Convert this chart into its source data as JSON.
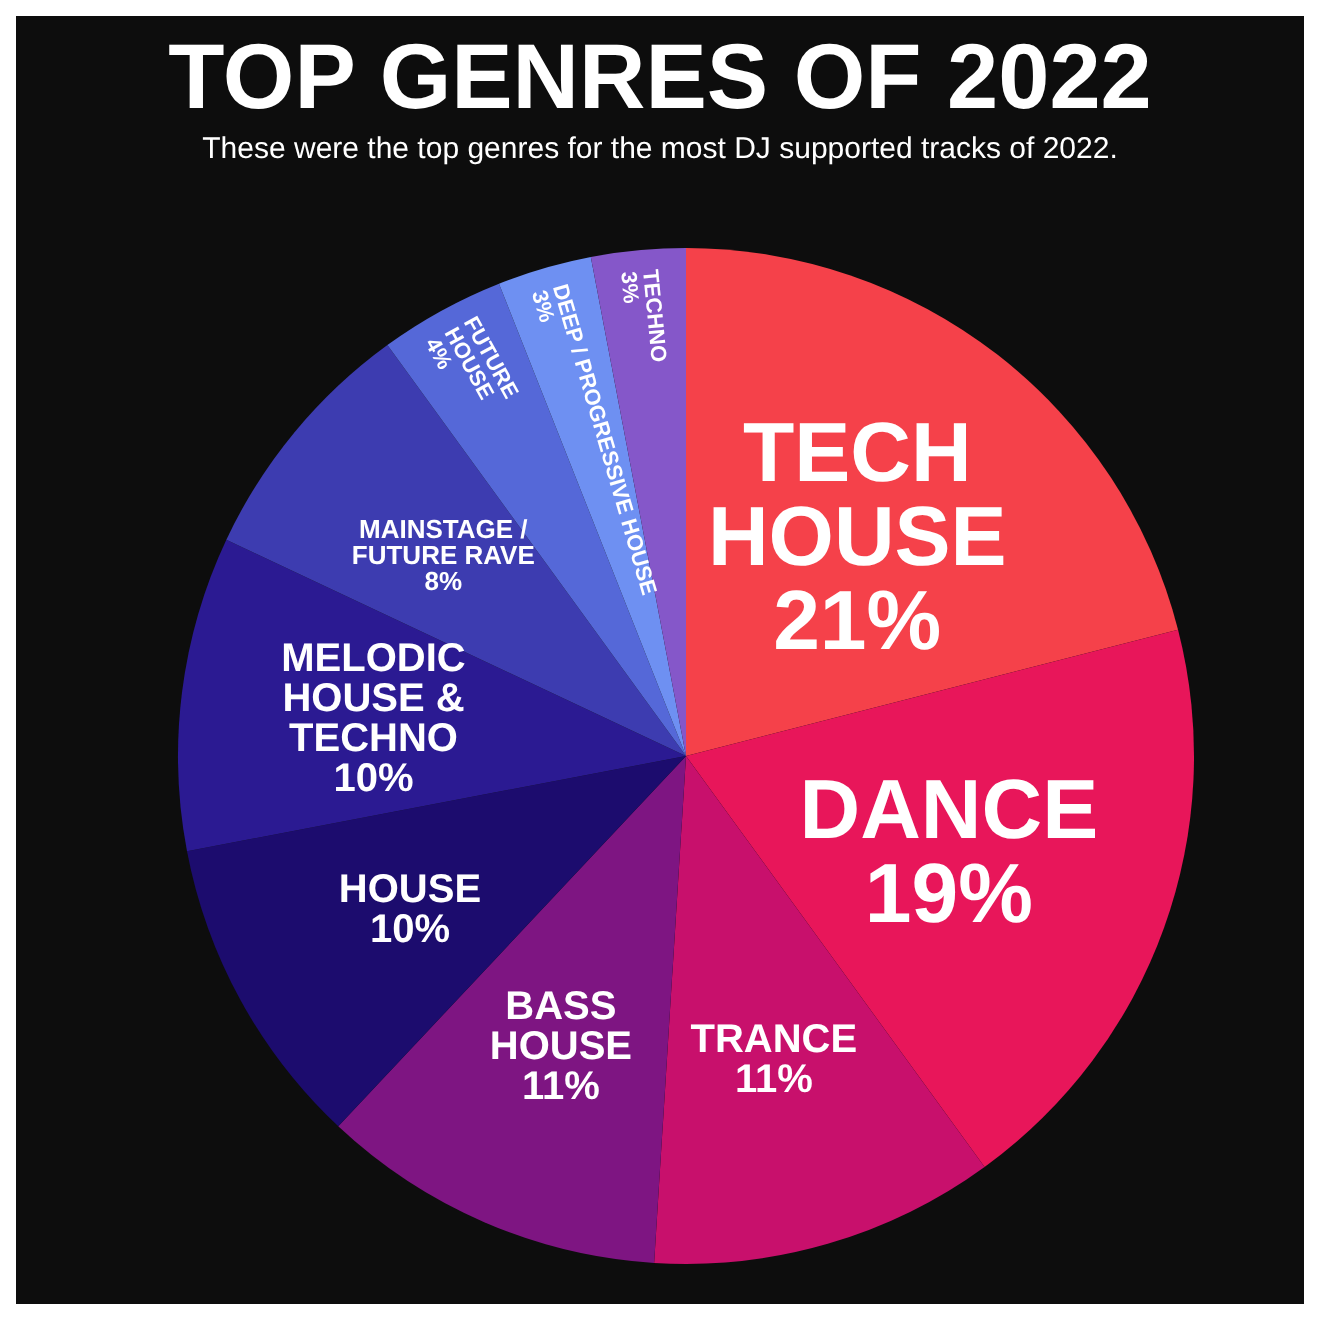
{
  "chart_data": {
    "type": "pie",
    "title": "TOP GENRES OF 2022",
    "subtitle": "These were the top genres for the most DJ supported tracks of 2022.",
    "categories": [
      "TECH HOUSE",
      "DANCE",
      "TRANCE",
      "BASS HOUSE",
      "HOUSE",
      "MELODIC HOUSE & TECHNO",
      "MAINSTAGE / FUTURE RAVE",
      "FUTURE HOUSE",
      "DEEP / PROGRESSIVE HOUSE",
      "TECHNO"
    ],
    "values": [
      21,
      19,
      11,
      11,
      10,
      10,
      8,
      4,
      3,
      3
    ],
    "value_labels": [
      "21%",
      "19%",
      "11%",
      "11%",
      "10%",
      "10%",
      "8%",
      "4%",
      "3%",
      "3%"
    ],
    "colors": [
      "#f5414a",
      "#e8165a",
      "#c8106c",
      "#7e1582",
      "#1c0c6e",
      "#2b1a92",
      "#3d3cb0",
      "#5568d8",
      "#6e90f2",
      "#8557c9"
    ],
    "legend": false
  }
}
